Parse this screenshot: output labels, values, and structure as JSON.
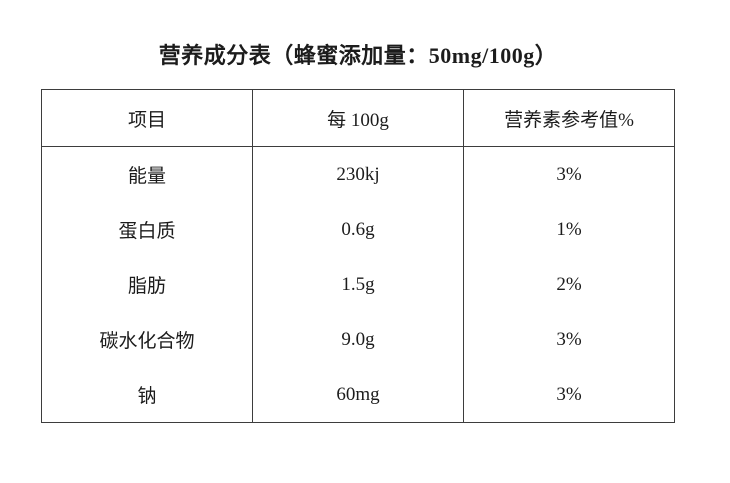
{
  "page": {
    "background_color": "#ffffff",
    "text_color": "#1c1c1c",
    "border_color": "#3d3d3d"
  },
  "title": {
    "text": "营养成分表（蜂蜜添加量：50mg/100g）"
  },
  "table": {
    "headers": [
      "项目",
      "每 100g",
      "营养素参考值%"
    ],
    "rows": [
      {
        "item": "能量",
        "per_100g": "230kj",
        "nrv": "3%"
      },
      {
        "item": "蛋白质",
        "per_100g": "0.6g",
        "nrv": "1%"
      },
      {
        "item": "脂肪",
        "per_100g": "1.5g",
        "nrv": "2%"
      },
      {
        "item": "碳水化合物",
        "per_100g": "9.0g",
        "nrv": "3%"
      },
      {
        "item": "钠",
        "per_100g": "60mg",
        "nrv": "3%"
      }
    ]
  }
}
